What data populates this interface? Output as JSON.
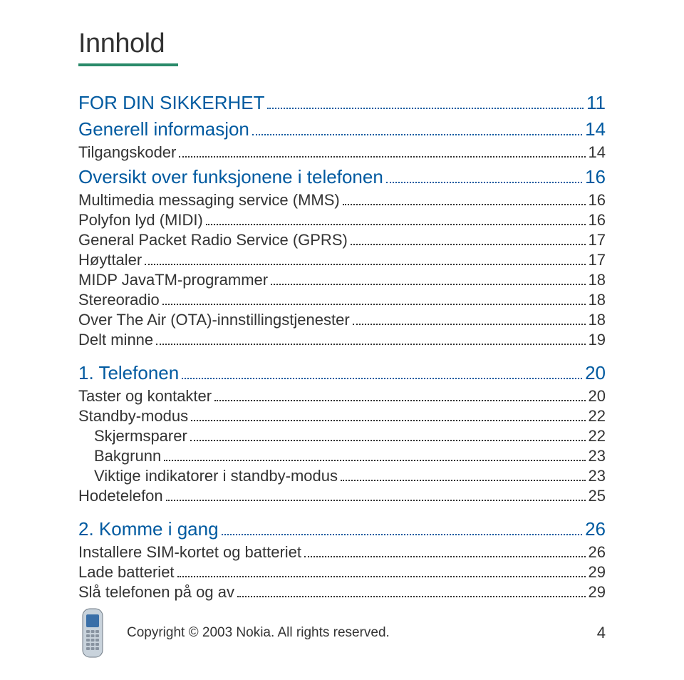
{
  "title": "Innhold",
  "colors": {
    "rule": "#2a8a6a",
    "link": "#005aa0",
    "text": "#333333",
    "background": "#ffffff"
  },
  "toc": [
    {
      "label": "FOR DIN SIKKERHET",
      "page": "11",
      "level": "section"
    },
    {
      "label": "Generell informasjon",
      "page": "14",
      "level": "section"
    },
    {
      "label": "Tilgangskoder",
      "page": "14",
      "level": "sub1"
    },
    {
      "label": "Oversikt over funksjonene i telefonen",
      "page": "16",
      "level": "section"
    },
    {
      "label": "Multimedia messaging service (MMS)",
      "page": "16",
      "level": "sub1"
    },
    {
      "label": "Polyfon lyd (MIDI)",
      "page": "16",
      "level": "sub1"
    },
    {
      "label": "General Packet Radio Service (GPRS)",
      "page": "17",
      "level": "sub1"
    },
    {
      "label": "Høyttaler",
      "page": "17",
      "level": "sub1"
    },
    {
      "label": "MIDP JavaTM-programmer",
      "page": "18",
      "level": "sub1"
    },
    {
      "label": "Stereoradio",
      "page": "18",
      "level": "sub1"
    },
    {
      "label": "Over The Air (OTA)-innstillingstjenester",
      "page": "18",
      "level": "sub1"
    },
    {
      "label": "Delt minne",
      "page": "19",
      "level": "sub1"
    },
    {
      "label": "1. Telefonen",
      "page": "20",
      "level": "chapter"
    },
    {
      "label": "Taster og kontakter",
      "page": "20",
      "level": "sub1"
    },
    {
      "label": "Standby-modus",
      "page": "22",
      "level": "sub1"
    },
    {
      "label": "Skjermsparer",
      "page": "22",
      "level": "sub2"
    },
    {
      "label": "Bakgrunn",
      "page": "23",
      "level": "sub2"
    },
    {
      "label": "Viktige indikatorer i standby-modus",
      "page": "23",
      "level": "sub2"
    },
    {
      "label": "Hodetelefon",
      "page": "25",
      "level": "sub1"
    },
    {
      "label": "2. Komme i gang",
      "page": "26",
      "level": "chapter"
    },
    {
      "label": "Installere SIM-kortet og batteriet",
      "page": "26",
      "level": "sub1"
    },
    {
      "label": "Lade batteriet",
      "page": "29",
      "level": "sub1"
    },
    {
      "label": "Slå telefonen på og av",
      "page": "29",
      "level": "sub1"
    }
  ],
  "footer": {
    "copyright": "Copyright © 2003 Nokia. All rights reserved.",
    "page_number": "4"
  }
}
